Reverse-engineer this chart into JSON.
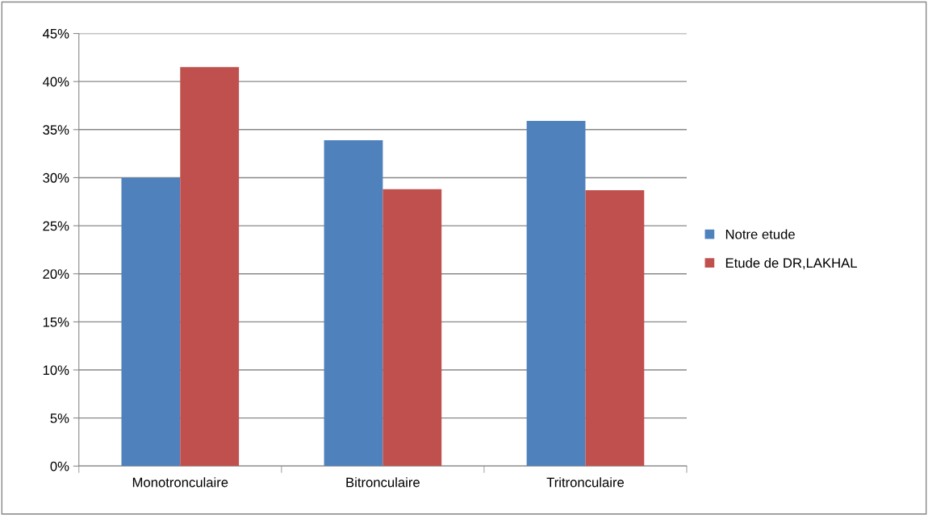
{
  "chart_data": {
    "type": "bar",
    "categories": [
      "Monotronculaire",
      "Bitronculaire",
      "Tritronculaire"
    ],
    "series": [
      {
        "name": "Notre etude",
        "color": "#4f81bd",
        "values": [
          30,
          33.9,
          35.9
        ]
      },
      {
        "name": "Etude de DR,LAKHAL",
        "color": "#c0504d",
        "values": [
          41.5,
          28.8,
          28.7
        ]
      }
    ],
    "ylim": [
      0,
      45
    ],
    "yticks": [
      {
        "value": 0,
        "label": "0%"
      },
      {
        "value": 5,
        "label": "5%"
      },
      {
        "value": 10,
        "label": "10%"
      },
      {
        "value": 15,
        "label": "15%"
      },
      {
        "value": 20,
        "label": "20%"
      },
      {
        "value": 25,
        "label": "25%"
      },
      {
        "value": 30,
        "label": "30%"
      },
      {
        "value": 35,
        "label": "35%"
      },
      {
        "value": 40,
        "label": "40%"
      },
      {
        "value": 45,
        "label": "45%"
      }
    ],
    "grid": "y",
    "legend": "right"
  }
}
